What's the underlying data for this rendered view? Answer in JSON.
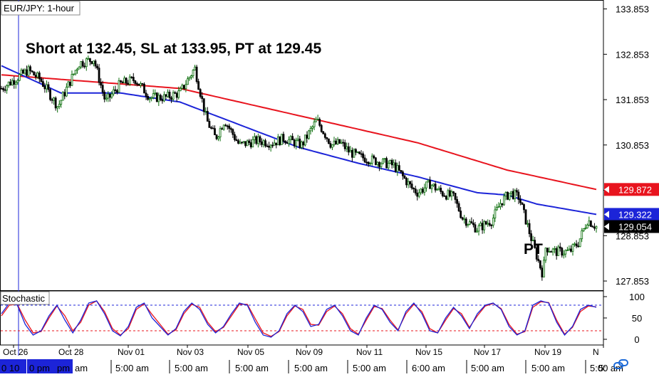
{
  "window": {
    "symbol_title": "EUR/JPY: 1-hour",
    "annotation": "Short at 132.45, SL at 133.95, PT at 129.45",
    "pt_label": "PT"
  },
  "price_panel": {
    "y_ticks": [
      "133.853",
      "132.853",
      "131.853",
      "130.853",
      "129.853",
      "128.853",
      "127.853"
    ],
    "y_tick_values": [
      133.853,
      132.853,
      131.853,
      130.853,
      129.853,
      128.853,
      127.853
    ],
    "ylim": [
      127.65,
      134.05
    ],
    "markers": [
      {
        "label": "129.872",
        "value": 129.872,
        "color": "#e8141e"
      },
      {
        "label": "129.322",
        "value": 129.322,
        "color": "#1c24d8"
      },
      {
        "label": "129.054",
        "value": 129.054,
        "color": "#000000"
      }
    ]
  },
  "stochastic_panel": {
    "title": "Stochastic",
    "y_ticks": [
      "100",
      "50",
      "0"
    ],
    "y_tick_values": [
      100,
      50,
      0
    ],
    "levels": [
      80,
      20
    ],
    "level_colors": [
      "#1c24d8",
      "#e8141e"
    ]
  },
  "x_axis": {
    "date_labels": [
      "Oct 26",
      "Oct 28",
      "Nov 01",
      "Nov 03",
      "Nov 05",
      "Nov 09",
      "Nov 11",
      "Nov 15",
      "Nov 17",
      "Nov 19",
      "N"
    ],
    "time_labels": [
      "0 10",
      "0 pm",
      "pm",
      "am",
      "5:00 am",
      "5:00 am",
      "5:00 am",
      "5:00 am",
      "5:00 am",
      "5:00 am",
      "6:00 am",
      "5:00 am",
      "5:00 am",
      "5:00 am",
      "5:"
    ]
  },
  "colors": {
    "candle_up": "#0b6e0b",
    "candle_down": "#000000",
    "ma_long": "#e8141e",
    "ma_short": "#1c24d8",
    "stoch_k": "#1c24d8",
    "stoch_d": "#e8141e",
    "time_highlight": "#1c24d8"
  },
  "chart_data": {
    "type": "candlestick",
    "title": "EUR/JPY: 1-hour",
    "x": [
      "Oct 26",
      "Oct 28",
      "Nov 01",
      "Nov 03",
      "Nov 05",
      "Nov 09",
      "Nov 11",
      "Nov 15",
      "Nov 17",
      "Nov 19"
    ],
    "price_path": {
      "x": [
        0,
        0.045,
        0.065,
        0.095,
        0.13,
        0.155,
        0.175,
        0.2,
        0.225,
        0.25,
        0.275,
        0.3,
        0.325,
        0.345,
        0.36,
        0.375,
        0.4,
        0.43,
        0.455,
        0.475,
        0.505,
        0.53,
        0.555,
        0.57,
        0.585,
        0.6,
        0.63,
        0.66,
        0.69,
        0.7,
        0.72,
        0.74,
        0.76,
        0.775,
        0.8,
        0.825,
        0.84,
        0.855,
        0.87,
        0.895,
        0.91,
        0.915,
        0.93,
        0.955,
        0.97,
        0.985,
        1.0
      ],
      "y": [
        132.1,
        132.5,
        132.3,
        131.7,
        132.65,
        132.75,
        131.8,
        132.2,
        132.3,
        131.9,
        131.9,
        132.0,
        132.55,
        131.4,
        131.0,
        131.4,
        130.85,
        130.95,
        130.9,
        131.0,
        130.85,
        131.4,
        130.85,
        130.9,
        130.7,
        130.6,
        130.5,
        130.4,
        129.9,
        129.8,
        130.0,
        129.8,
        129.7,
        129.25,
        129.0,
        129.2,
        129.6,
        129.8,
        129.7,
        128.6,
        128.0,
        128.6,
        128.5,
        128.5,
        128.7,
        129.2,
        129.054
      ]
    },
    "ma_long": {
      "x": [
        0,
        0.3,
        0.5,
        0.7,
        0.85,
        1.0
      ],
      "y": [
        132.4,
        132.1,
        131.5,
        130.9,
        130.3,
        129.872
      ]
    },
    "ma_short": {
      "x": [
        0,
        0.1,
        0.2,
        0.3,
        0.4,
        0.5,
        0.6,
        0.7,
        0.8,
        0.85,
        0.9,
        1.0
      ],
      "y": [
        132.6,
        132.0,
        132.0,
        131.8,
        131.3,
        130.8,
        130.45,
        130.15,
        129.8,
        129.75,
        129.55,
        129.322
      ]
    },
    "stochastic_k": [
      60,
      85,
      80,
      35,
      10,
      20,
      55,
      80,
      45,
      15,
      45,
      85,
      90,
      60,
      20,
      8,
      30,
      75,
      85,
      50,
      30,
      10,
      25,
      65,
      85,
      70,
      35,
      15,
      30,
      60,
      85,
      80,
      40,
      10,
      5,
      20,
      60,
      80,
      65,
      30,
      35,
      70,
      80,
      55,
      20,
      10,
      50,
      80,
      70,
      40,
      20,
      65,
      85,
      60,
      20,
      15,
      50,
      75,
      55,
      25,
      60,
      80,
      85,
      70,
      30,
      10,
      20,
      80,
      90,
      85,
      40,
      10,
      30,
      70,
      80,
      75
    ],
    "stochastic_d": [
      55,
      80,
      82,
      45,
      15,
      18,
      50,
      78,
      55,
      20,
      40,
      80,
      90,
      65,
      25,
      10,
      25,
      70,
      83,
      58,
      35,
      12,
      22,
      60,
      82,
      75,
      40,
      18,
      28,
      55,
      82,
      82,
      48,
      15,
      7,
      18,
      55,
      78,
      70,
      35,
      33,
      65,
      78,
      60,
      25,
      12,
      45,
      77,
      72,
      45,
      22,
      60,
      82,
      65,
      25,
      15,
      45,
      72,
      60,
      28,
      55,
      78,
      84,
      72,
      35,
      12,
      18,
      75,
      88,
      86,
      45,
      12,
      28,
      65,
      78,
      76
    ],
    "ylim": [
      127.65,
      134.05
    ],
    "legend": "none",
    "grid": false
  }
}
